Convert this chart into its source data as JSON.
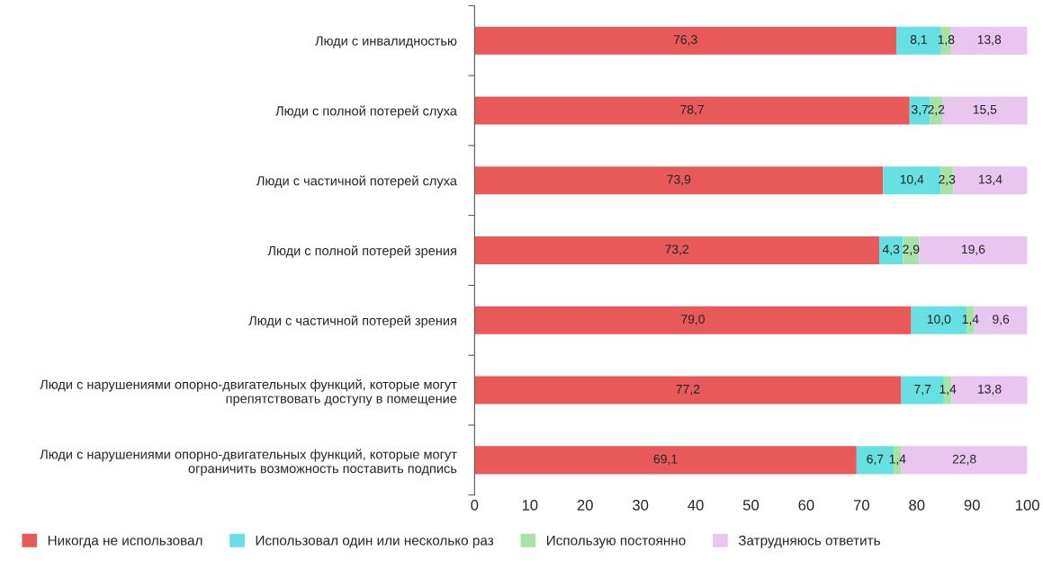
{
  "chart_data": {
    "type": "bar",
    "orientation": "horizontal",
    "stacked": true,
    "categories": [
      "Люди с инвалидностью",
      "Люди с полной потерей слуха",
      "Люди с частичной потерей слуха",
      "Люди с полной потерей зрения",
      "Люди с частичной потерей зрения",
      "Люди с нарушениями опорно-двигательных функций, которые могут\nпрепятствовать доступу в помещение",
      "Люди с нарушениями опорно-двигательных функций, которые могут\nограничить возможность поставить подпись"
    ],
    "series": [
      {
        "name": "Никогда не использовал",
        "color": "#e85a5a",
        "values": [
          76.3,
          78.7,
          73.9,
          73.2,
          79.0,
          77.2,
          69.1
        ],
        "value_labels": [
          "76,3",
          "78,7",
          "73,9",
          "73,2",
          "79,0",
          "77,2",
          "69,1"
        ]
      },
      {
        "name": "Использовал один или несколько раз",
        "color": "#66e0e3",
        "values": [
          8.1,
          3.7,
          10.4,
          4.3,
          10.0,
          7.7,
          6.7
        ],
        "value_labels": [
          "8,1",
          "3,7",
          "10,4",
          "4,3",
          "10,0",
          "7,7",
          "6,7"
        ]
      },
      {
        "name": "Использую постоянно",
        "color": "#a8e2a8",
        "values": [
          1.8,
          2.2,
          2.3,
          2.9,
          1.4,
          1.4,
          1.4
        ],
        "value_labels": [
          "1,8",
          "2,2",
          "2,3",
          "2,9",
          "1,4",
          "1,4",
          "1,4"
        ]
      },
      {
        "name": "Затрудняюсь ответить",
        "color": "#e8c6ef",
        "values": [
          13.8,
          15.5,
          13.4,
          19.6,
          9.6,
          13.8,
          22.8
        ],
        "value_labels": [
          "13,8",
          "15,5",
          "13,4",
          "19,6",
          "9,6",
          "13,8",
          "22,8"
        ]
      }
    ],
    "xlim": [
      0,
      100
    ],
    "xticks": [
      0,
      10,
      20,
      30,
      40,
      50,
      60,
      70,
      80,
      90,
      100
    ],
    "grid": false,
    "legend": "bottom"
  }
}
